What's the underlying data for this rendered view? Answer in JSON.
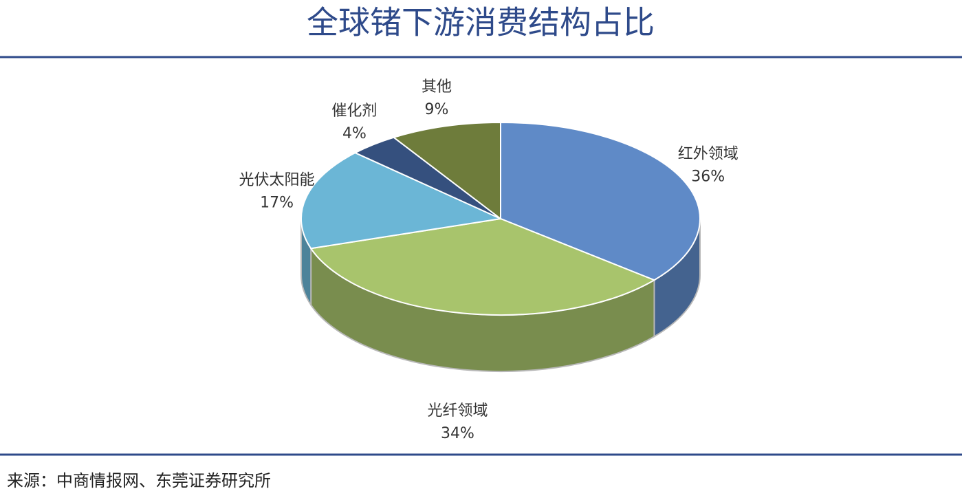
{
  "chart_data": {
    "type": "pie",
    "title": "全球锗下游消费结构占比",
    "categories": [
      "红外领域",
      "光纤领域",
      "光伏太阳能",
      "催化剂",
      "其他"
    ],
    "values": [
      36,
      34,
      17,
      4,
      9
    ],
    "value_labels": [
      "36%",
      "34%",
      "17%",
      "4%",
      "9%"
    ],
    "colors": [
      "#5f8ac7",
      "#a8c46c",
      "#6bb6d6",
      "#35507e",
      "#6e7c3b"
    ],
    "source": "来源：中商情报网、东莞证券研究所"
  }
}
